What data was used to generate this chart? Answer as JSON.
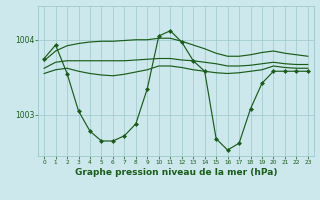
{
  "bg_color": "#cce8ec",
  "grid_color": "#9dc8cc",
  "line_color": "#1a5c1a",
  "xlabel": "Graphe pression niveau de la mer (hPa)",
  "xlabel_fontsize": 6.5,
  "yticks": [
    1003,
    1004
  ],
  "xticks": [
    0,
    1,
    2,
    3,
    4,
    5,
    6,
    7,
    8,
    9,
    10,
    11,
    12,
    13,
    14,
    15,
    16,
    17,
    18,
    19,
    20,
    21,
    22,
    23
  ],
  "xlim": [
    -0.5,
    23.5
  ],
  "ylim": [
    1002.45,
    1004.45
  ],
  "hours": [
    0,
    1,
    2,
    3,
    4,
    5,
    6,
    7,
    8,
    9,
    10,
    11,
    12,
    13,
    14,
    15,
    16,
    17,
    18,
    19,
    20,
    21,
    22,
    23
  ],
  "line_zigzag": [
    1003.75,
    1003.93,
    1003.55,
    1003.05,
    1002.78,
    1002.65,
    1002.65,
    1002.72,
    1002.88,
    1003.35,
    1004.05,
    1004.12,
    1003.97,
    1003.72,
    1003.58,
    1002.68,
    1002.53,
    1002.62,
    1003.08,
    1003.42,
    1003.58,
    1003.58,
    1003.58,
    1003.58
  ],
  "line_upper": [
    1003.72,
    1003.85,
    1003.92,
    1003.95,
    1003.97,
    1003.98,
    1003.98,
    1003.99,
    1004.0,
    1004.0,
    1004.02,
    1004.02,
    1003.98,
    1003.93,
    1003.88,
    1003.82,
    1003.78,
    1003.78,
    1003.8,
    1003.83,
    1003.85,
    1003.82,
    1003.8,
    1003.78
  ],
  "line_mid1": [
    1003.62,
    1003.7,
    1003.72,
    1003.72,
    1003.72,
    1003.72,
    1003.72,
    1003.72,
    1003.73,
    1003.74,
    1003.75,
    1003.75,
    1003.73,
    1003.72,
    1003.7,
    1003.68,
    1003.65,
    1003.65,
    1003.66,
    1003.68,
    1003.7,
    1003.68,
    1003.67,
    1003.67
  ],
  "line_mid2": [
    1003.55,
    1003.6,
    1003.62,
    1003.58,
    1003.55,
    1003.53,
    1003.52,
    1003.54,
    1003.57,
    1003.6,
    1003.65,
    1003.65,
    1003.63,
    1003.6,
    1003.58,
    1003.56,
    1003.55,
    1003.56,
    1003.58,
    1003.6,
    1003.65,
    1003.63,
    1003.62,
    1003.62
  ]
}
